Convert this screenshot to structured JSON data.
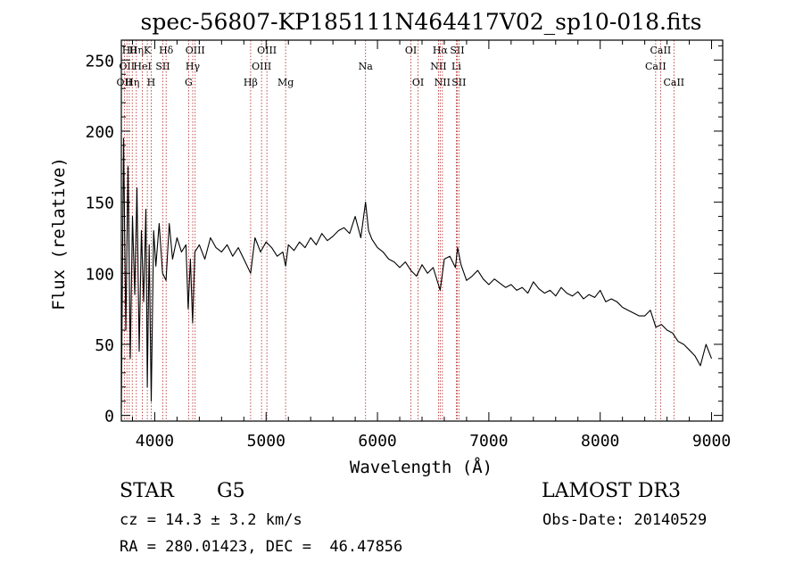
{
  "chart_data": {
    "type": "line",
    "title": "spec-56807-KP185111N464417V02_sp10-018.fits",
    "xlabel": "Wavelength (Å)",
    "ylabel": "Flux (relative)",
    "xlim": [
      3700,
      9100
    ],
    "ylim": [
      -4,
      264
    ],
    "xticks": [
      4000,
      5000,
      6000,
      7000,
      8000,
      9000
    ],
    "yticks": [
      0,
      50,
      100,
      150,
      200,
      250
    ],
    "grid": false,
    "series": [
      {
        "name": "flux",
        "color": "#000000",
        "x": [
          3700,
          3720,
          3740,
          3760,
          3780,
          3800,
          3820,
          3840,
          3860,
          3880,
          3900,
          3920,
          3933,
          3950,
          3968,
          3990,
          4010,
          4040,
          4070,
          4101,
          4130,
          4160,
          4200,
          4240,
          4280,
          4300,
          4320,
          4340,
          4360,
          4400,
          4450,
          4500,
          4550,
          4600,
          4650,
          4700,
          4750,
          4800,
          4861,
          4900,
          4950,
          5000,
          5050,
          5100,
          5150,
          5175,
          5200,
          5250,
          5300,
          5350,
          5400,
          5450,
          5500,
          5550,
          5600,
          5650,
          5700,
          5750,
          5800,
          5850,
          5893,
          5920,
          5950,
          6000,
          6050,
          6100,
          6150,
          6200,
          6250,
          6300,
          6350,
          6400,
          6450,
          6500,
          6563,
          6600,
          6650,
          6700,
          6720,
          6750,
          6800,
          6850,
          6900,
          6950,
          7000,
          7050,
          7100,
          7150,
          7200,
          7250,
          7300,
          7350,
          7400,
          7450,
          7500,
          7550,
          7600,
          7650,
          7700,
          7750,
          7800,
          7850,
          7900,
          7950,
          8000,
          8050,
          8100,
          8150,
          8200,
          8250,
          8300,
          8350,
          8400,
          8450,
          8500,
          8550,
          8600,
          8650,
          8700,
          8750,
          8800,
          8850,
          8900,
          8950,
          9000
        ],
        "y": [
          5,
          195,
          60,
          175,
          40,
          140,
          85,
          160,
          45,
          130,
          80,
          145,
          20,
          120,
          10,
          130,
          105,
          135,
          100,
          95,
          135,
          110,
          125,
          115,
          120,
          75,
          110,
          65,
          115,
          120,
          110,
          125,
          118,
          115,
          120,
          112,
          118,
          110,
          100,
          125,
          115,
          122,
          118,
          112,
          115,
          105,
          120,
          116,
          122,
          118,
          125,
          120,
          128,
          123,
          126,
          130,
          132,
          128,
          140,
          125,
          150,
          130,
          124,
          118,
          115,
          110,
          108,
          104,
          108,
          102,
          98,
          106,
          100,
          104,
          88,
          110,
          112,
          104,
          118,
          106,
          95,
          98,
          102,
          96,
          92,
          96,
          93,
          90,
          92,
          88,
          90,
          86,
          94,
          89,
          86,
          88,
          84,
          90,
          86,
          84,
          87,
          82,
          85,
          83,
          88,
          80,
          82,
          80,
          76,
          74,
          72,
          70,
          70,
          74,
          62,
          64,
          60,
          58,
          52,
          50,
          46,
          42,
          35,
          50,
          40
        ]
      }
    ],
    "lines": [
      {
        "wavelength": 3727,
        "label": "OII",
        "row": 2
      },
      {
        "wavelength": 3750,
        "label": "OII",
        "row": 1
      },
      {
        "wavelength": 3771,
        "label": "Hθ",
        "row": 0
      },
      {
        "wavelength": 3798,
        "label": "Hη",
        "row": 2
      },
      {
        "wavelength": 3835,
        "label": "Hη",
        "row": 0
      },
      {
        "wavelength": 3889,
        "label": "HeI",
        "row": 1
      },
      {
        "wavelength": 3933,
        "label": "K",
        "row": 0
      },
      {
        "wavelength": 3968,
        "label": "H",
        "row": 2
      },
      {
        "wavelength": 4072,
        "label": "SII",
        "row": 1
      },
      {
        "wavelength": 4102,
        "label": "Hδ",
        "row": 0
      },
      {
        "wavelength": 4304,
        "label": "G",
        "row": 2
      },
      {
        "wavelength": 4341,
        "label": "Hγ",
        "row": 1
      },
      {
        "wavelength": 4363,
        "label": "OIII",
        "row": 0
      },
      {
        "wavelength": 4861,
        "label": "Hβ",
        "row": 2
      },
      {
        "wavelength": 4959,
        "label": "OIII",
        "row": 1
      },
      {
        "wavelength": 5007,
        "label": "OIII",
        "row": 0
      },
      {
        "wavelength": 5175,
        "label": "Mg",
        "row": 2
      },
      {
        "wavelength": 5893,
        "label": "Na",
        "row": 1
      },
      {
        "wavelength": 6300,
        "label": "OI",
        "row": 0
      },
      {
        "wavelength": 6364,
        "label": "OI",
        "row": 2
      },
      {
        "wavelength": 6548,
        "label": "NII",
        "row": 1
      },
      {
        "wavelength": 6563,
        "label": "Hα",
        "row": 0
      },
      {
        "wavelength": 6583,
        "label": "NII",
        "row": 2
      },
      {
        "wavelength": 6708,
        "label": "Li",
        "row": 1
      },
      {
        "wavelength": 6716,
        "label": "SII",
        "row": 0
      },
      {
        "wavelength": 6731,
        "label": "SII",
        "row": 2
      },
      {
        "wavelength": 8498,
        "label": "CaII",
        "row": 1
      },
      {
        "wavelength": 8542,
        "label": "CaII",
        "row": 0
      },
      {
        "wavelength": 8662,
        "label": "CaII",
        "row": 2
      }
    ],
    "line_color": "#b22222",
    "annotations": {
      "object_class": "STAR",
      "subclass": "G5",
      "survey": "LAMOST DR3",
      "redshift_text": "cz = 14.3 ± 3.2 km/s",
      "obs_date_text": "Obs-Date: 20140529",
      "coords_text": "RA = 280.01423, DEC =  46.47856"
    }
  }
}
